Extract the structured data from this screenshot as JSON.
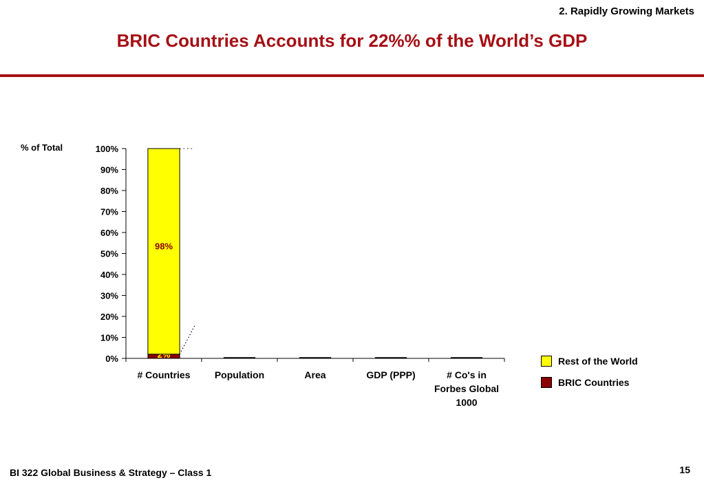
{
  "header": {
    "section": "2. Rapidly Growing Markets",
    "title": "BRIC Countries Accounts for 22%% of the World’s GDP"
  },
  "footer": {
    "course": "BI 322 Global Business & Strategy – Class 1",
    "page": "15"
  },
  "colors": {
    "accent": "#a50f15",
    "rest_of_world": "#ffff00",
    "bric": "#8b0000"
  },
  "chart_data": {
    "type": "bar",
    "stacked": true,
    "ylabel": "% of Total",
    "ylim": [
      0,
      100
    ],
    "yticks": [
      "0%",
      "10%",
      "20%",
      "30%",
      "40%",
      "50%",
      "60%",
      "70%",
      "80%",
      "90%",
      "100%"
    ],
    "categories": [
      "# Countries",
      "Population",
      "Area",
      "GDP (PPP)",
      "# Co's in Forbes Global 1000"
    ],
    "series": [
      {
        "name": "BRIC Countries",
        "color": "#8b0000",
        "values": [
          2,
          null,
          null,
          null,
          null
        ],
        "labels": [
          "2%",
          "",
          "",
          "",
          ""
        ]
      },
      {
        "name": "Rest of the World",
        "color": "#ffff00",
        "values": [
          98,
          null,
          null,
          null,
          null
        ],
        "labels": [
          "98%",
          "",
          "",
          "",
          ""
        ]
      }
    ],
    "legend_order": [
      "Rest of the World",
      "BRIC Countries"
    ],
    "legend_position": "right",
    "grid": false
  }
}
